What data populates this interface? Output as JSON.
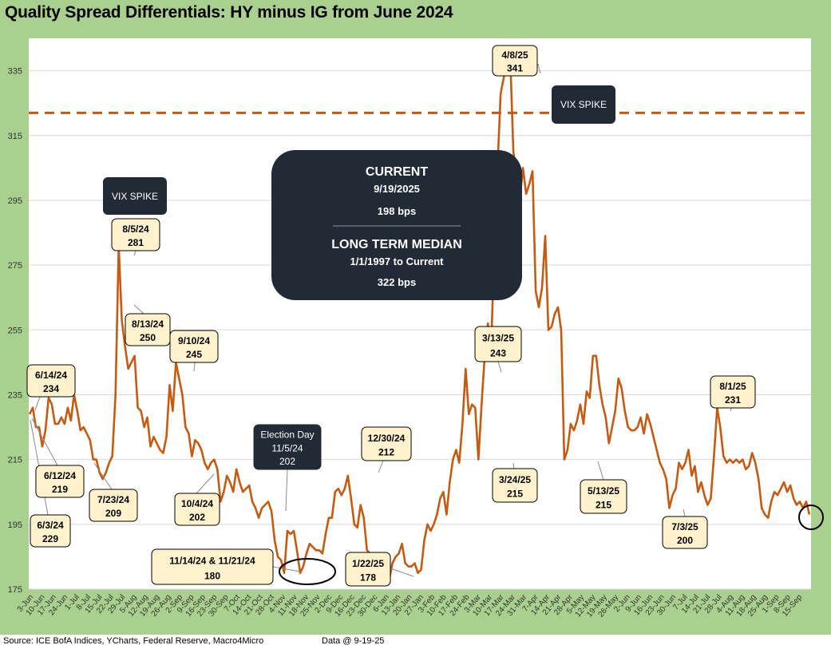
{
  "chart_data": {
    "type": "line",
    "title": "Quality Spread Differentials: HY minus IG from June 2024",
    "ylim": [
      175,
      345
    ],
    "yticks": [
      175,
      195,
      215,
      235,
      255,
      275,
      295,
      315,
      335
    ],
    "median_line": 322,
    "xtick_labels": [
      "3-Jun",
      "10-Jun",
      "17-Jun",
      "24-Jun",
      "1-Jul",
      "8-Jul",
      "15-Jul",
      "22-Jul",
      "29-Jul",
      "5-Aug",
      "12-Aug",
      "19-Aug",
      "26-Aug",
      "2-Sep",
      "9-Sep",
      "16-Sep",
      "23-Sep",
      "30-Sep",
      "7-Oct",
      "14-Oct",
      "21-Oct",
      "28-Oct",
      "4-Nov",
      "11-Nov",
      "18-Nov",
      "25-Nov",
      "2-Dec",
      "9-Dec",
      "16-Dec",
      "23-Dec",
      "30-Dec",
      "6-Jan",
      "13-Jan",
      "20-Jan",
      "27-Jan",
      "3-Feb",
      "10-Feb",
      "17-Feb",
      "24-Feb",
      "3-Mar",
      "10-Mar",
      "17-Mar",
      "24-Mar",
      "31-Mar",
      "7-Apr",
      "14-Apr",
      "21-Apr",
      "28-Apr",
      "5-May",
      "12-May",
      "19-May",
      "26-May",
      "2-Jun",
      "9-Jun",
      "16-Jun",
      "23-Jun",
      "30-Jun",
      "7-Jul",
      "14-Jul",
      "21-Jul",
      "28-Jul",
      "4-Aug",
      "11-Aug",
      "18-Aug",
      "25-Aug",
      "1-Sep",
      "8-Sep",
      "15-Sep"
    ],
    "series": [
      {
        "name": "HY minus IG (bps)",
        "color": "#c55a11",
        "values": [
          229,
          231,
          225,
          225,
          219,
          224,
          234,
          232,
          226,
          226,
          228,
          226,
          231,
          227,
          235,
          230,
          224,
          225,
          223,
          221,
          215,
          215,
          211,
          209,
          211,
          214,
          216,
          235,
          281,
          258,
          250,
          243,
          245,
          247,
          231,
          230,
          225,
          228,
          219,
          222,
          220,
          218,
          217,
          222,
          238,
          230,
          245,
          240,
          235,
          225,
          223,
          216,
          221,
          220,
          218,
          214,
          212,
          214,
          215,
          212,
          202,
          205,
          210,
          208,
          205,
          212,
          208,
          205,
          206,
          207,
          202,
          200,
          197,
          200,
          201,
          202,
          199,
          190,
          185,
          184,
          180,
          193,
          192,
          193,
          187,
          180,
          182,
          186,
          189,
          188,
          187,
          187,
          186,
          192,
          197,
          197,
          205,
          206,
          204,
          206,
          210,
          203,
          195,
          194,
          201,
          197,
          187,
          186,
          185,
          186,
          185,
          181,
          178,
          178,
          183,
          185,
          186,
          189,
          183,
          182,
          182,
          183,
          180,
          181,
          190,
          195,
          193,
          195,
          198,
          203,
          205,
          198,
          208,
          215,
          218,
          214,
          226,
          243,
          229,
          232,
          231,
          215,
          232,
          247,
          257,
          249,
          280,
          305,
          328,
          333,
          341,
          339,
          310,
          303,
          295,
          305,
          297,
          300,
          304,
          267,
          262,
          268,
          284,
          255,
          256,
          260,
          262,
          255,
          215,
          218,
          226,
          224,
          227,
          232,
          226,
          236,
          234,
          247,
          247,
          238,
          232,
          228,
          220,
          225,
          230,
          240,
          237,
          230,
          225,
          224,
          224,
          225,
          228,
          223,
          229,
          226,
          222,
          218,
          214,
          212,
          209,
          200,
          204,
          206,
          214,
          212,
          214,
          218,
          210,
          213,
          205,
          208,
          204,
          201,
          203,
          216,
          231,
          225,
          216,
          214,
          215,
          214,
          215,
          214,
          215,
          212,
          213,
          217,
          214,
          209,
          200,
          198,
          197,
          202,
          205,
          204,
          206,
          208,
          205,
          207,
          203,
          201,
          202,
          200,
          202,
          198
        ]
      }
    ],
    "annotations": [
      {
        "date": "6/14/24",
        "value": "234"
      },
      {
        "date": "6/12/24",
        "value": "219"
      },
      {
        "date": "6/3/24",
        "value": "229"
      },
      {
        "date": "7/23/24",
        "value": "209"
      },
      {
        "date": "8/5/24",
        "value": "281"
      },
      {
        "date": "8/13/24",
        "value": "250"
      },
      {
        "date": "9/10/24",
        "value": "245"
      },
      {
        "date": "10/4/24",
        "value": "202"
      },
      {
        "date": "Election Day",
        "value": "11/5/24",
        "value2": "202"
      },
      {
        "date": "11/14/24 & 11/21/24",
        "value": "180"
      },
      {
        "date": "12/30/24",
        "value": "212"
      },
      {
        "date": "1/22/25",
        "value": "178"
      },
      {
        "date": "3/13/25",
        "value": "243"
      },
      {
        "date": "3/24/25",
        "value": "215"
      },
      {
        "date": "4/8/25",
        "value": "341"
      },
      {
        "date": "5/13/25",
        "value": "215"
      },
      {
        "date": "7/3/25",
        "value": "200"
      },
      {
        "date": "8/1/25",
        "value": "231"
      }
    ],
    "vix_labels": [
      "VIX SPIKE",
      "VIX SPIKE"
    ],
    "info_box": {
      "current_title": "CURRENT",
      "current_date": "9/19/2025",
      "current_value": "198 bps",
      "median_title": "LONG TERM MEDIAN",
      "median_range": "1/1/1997 to Current",
      "median_value": "322 bps"
    },
    "colors": {
      "line": "#c55a11",
      "callout_bg": "#fff2cc",
      "dark_box": "#222a35",
      "frame": "#a9d08e",
      "grid": "#d9d9d9"
    }
  },
  "footer": {
    "source": "Source: ICE BofA Indices, YCharts, Federal Reserve, Macro4Micro",
    "date": "Data @ 9-19-25"
  }
}
